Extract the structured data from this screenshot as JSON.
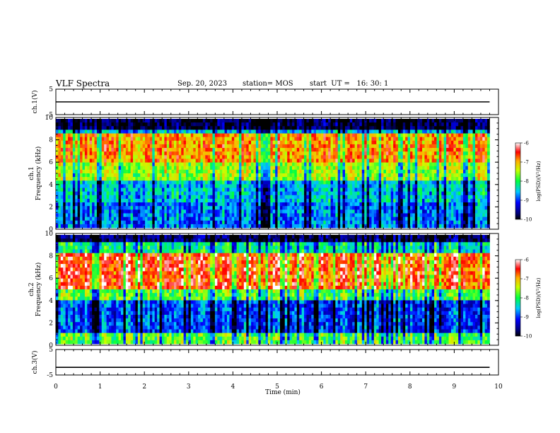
{
  "header": {
    "title": "VLF Spectra",
    "date": "Sep. 20, 2023",
    "station": "station= MOS",
    "start": "start  UT =   16: 30: 1"
  },
  "chart_data": [
    {
      "type": "line",
      "id": "ch1-voltage",
      "ylabel": "ch.1(V)",
      "ylim": [
        -5,
        5
      ],
      "yticks": [
        "5",
        "-5"
      ],
      "xlim": [
        0,
        10
      ],
      "series": [
        {
          "x": [
            0,
            9.8
          ],
          "y": [
            0,
            0
          ]
        }
      ]
    },
    {
      "type": "heatmap",
      "id": "ch1-spectrogram",
      "ylabel_line1": "ch.1",
      "ylabel_line2": "Frequency (kHz)",
      "ylim": [
        0,
        10
      ],
      "yticks": [
        "0",
        "2",
        "4",
        "6",
        "8",
        "10"
      ],
      "xlim": [
        0,
        10
      ],
      "data_xmax": 9.8,
      "profile": "broad",
      "colorbar": {
        "label": "log(PSD)(V²/Hz)",
        "range": [
          -10,
          -6
        ],
        "ticks": [
          "-6",
          "-7",
          "-8",
          "-9",
          "-10"
        ]
      }
    },
    {
      "type": "heatmap",
      "id": "ch2-spectrogram",
      "ylabel_line1": "ch.2",
      "ylabel_line2": "Frequency (kHz)",
      "ylim": [
        0,
        10
      ],
      "yticks": [
        "0",
        "2",
        "4",
        "6",
        "8",
        "10"
      ],
      "xlim": [
        0,
        10
      ],
      "data_xmax": 9.8,
      "profile": "band",
      "colorbar": {
        "label": "log(PSD)(V²/Hz)",
        "range": [
          -10,
          -6
        ],
        "ticks": [
          "-6",
          "-7",
          "-8",
          "-9",
          "-10"
        ]
      }
    },
    {
      "type": "line",
      "id": "ch3-voltage",
      "ylabel": "ch.3(V)",
      "ylim": [
        -5,
        5
      ],
      "yticks": [
        "5",
        "-5"
      ],
      "xlim": [
        0,
        10
      ],
      "series": [
        {
          "x": [
            0,
            9.8
          ],
          "y": [
            -2,
            -2
          ]
        }
      ]
    }
  ],
  "xaxis": {
    "label": "Time (min)",
    "ticks": [
      "0",
      "1",
      "2",
      "3",
      "4",
      "5",
      "6",
      "7",
      "8",
      "9",
      "10"
    ]
  }
}
